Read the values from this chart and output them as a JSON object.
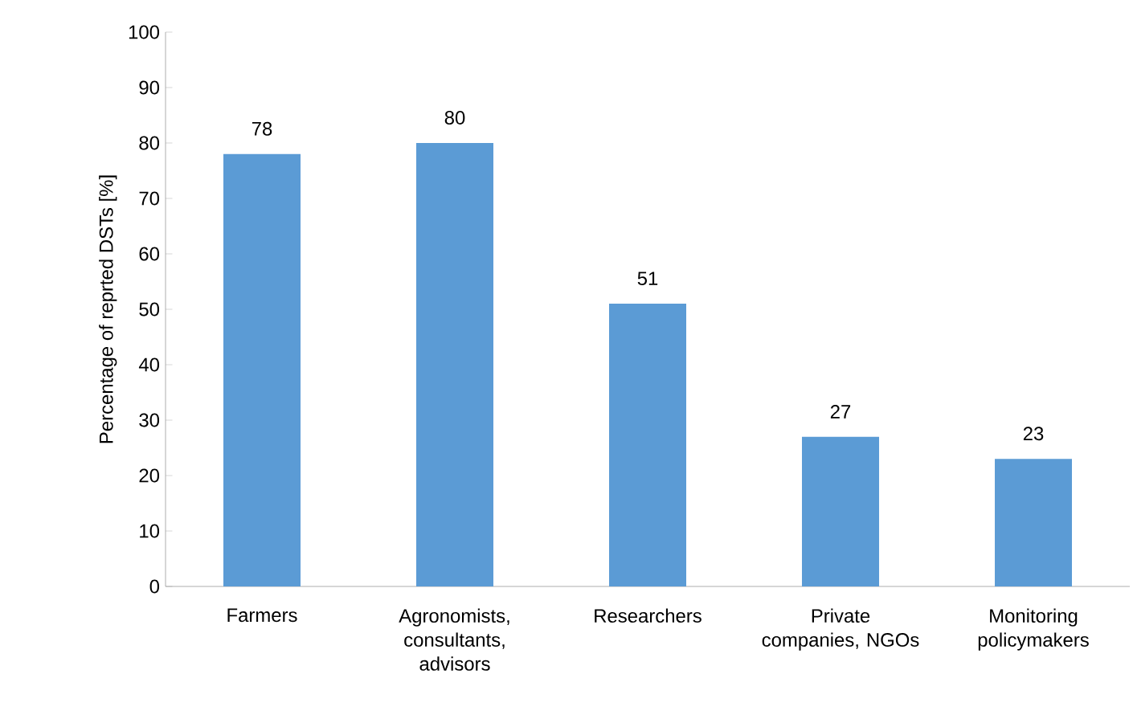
{
  "chart_data": {
    "type": "bar",
    "ylabel": "Percentage of reprted DSTs [%]",
    "categories": [
      "Farmers",
      "Agronomists, consultants, advisors",
      "Researchers",
      "Private companies, NGOs",
      "Monitoring policymakers"
    ],
    "values": [
      78,
      80,
      51,
      27,
      23
    ],
    "color": "#5b9bd5",
    "ylim": [
      0,
      100
    ],
    "yticks": [
      0,
      10,
      20,
      30,
      40,
      50,
      60,
      70,
      80,
      90,
      100
    ],
    "data_labels": true,
    "grid": false
  }
}
